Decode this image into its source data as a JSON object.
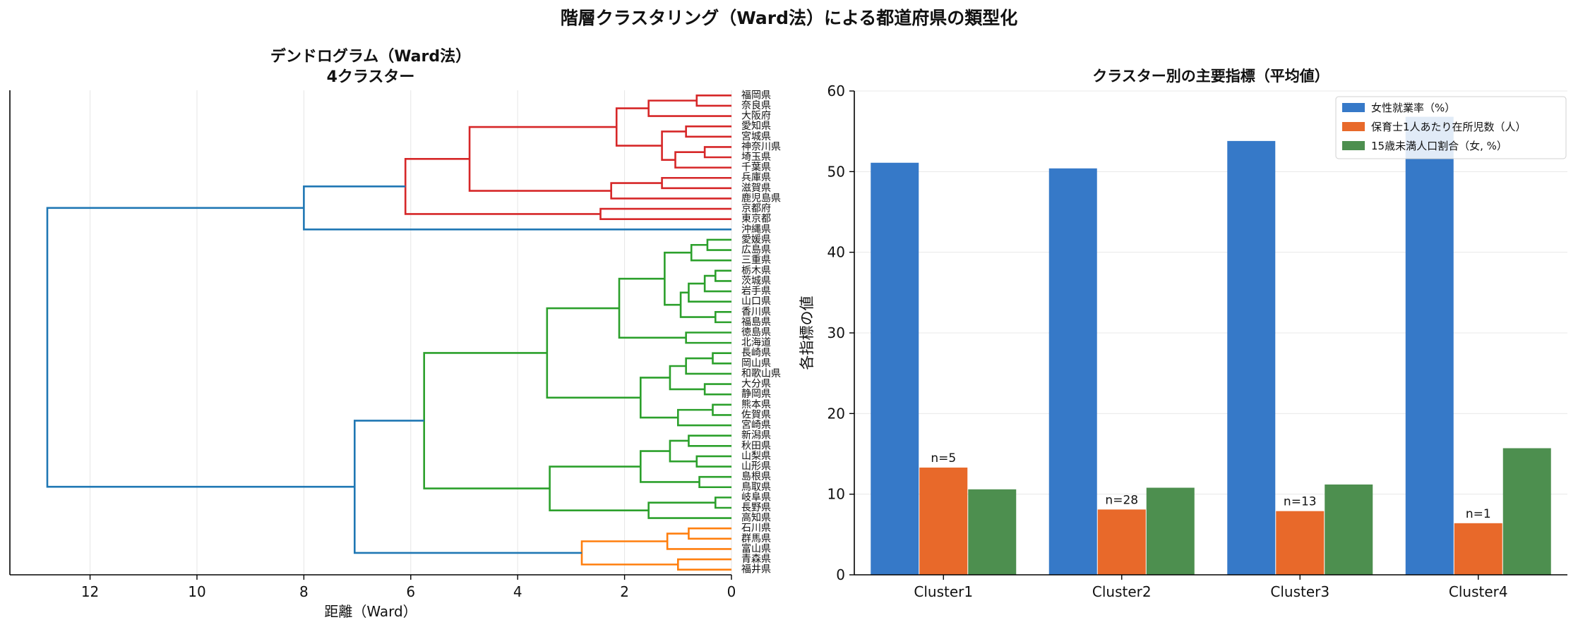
{
  "figure": {
    "title": "階層クラスタリング（Ward法）による都道府県の類型化"
  },
  "colors": {
    "cluster_red": "#d62728",
    "cluster_green": "#2ca02c",
    "cluster_orange": "#ff7f0e",
    "link_blue": "#1f77b4",
    "bar_blue": "#3679c8",
    "bar_orange": "#e8692a",
    "bar_green": "#4d8f4f"
  },
  "chart_data": [
    {
      "type": "dendrogram",
      "title": "デンドログラム（Ward法）",
      "subtitle": "4クラスター",
      "xlabel": "距離（Ward）",
      "xlim": [
        13.5,
        0
      ],
      "xticks": [
        12,
        10,
        8,
        6,
        4,
        2,
        0
      ],
      "grid": "vertical",
      "orientation": "left",
      "leaves": [
        "福岡県",
        "奈良県",
        "大阪府",
        "愛知県",
        "宮城県",
        "神奈川県",
        "埼玉県",
        "千葉県",
        "兵庫県",
        "滋賀県",
        "鹿児島県",
        "京都府",
        "東京都",
        "沖縄県",
        "愛媛県",
        "広島県",
        "三重県",
        "栃木県",
        "茨城県",
        "岩手県",
        "山口県",
        "香川県",
        "福島県",
        "徳島県",
        "北海道",
        "長崎県",
        "岡山県",
        "和歌山県",
        "大分県",
        "静岡県",
        "熊本県",
        "佐賀県",
        "宮崎県",
        "新潟県",
        "秋田県",
        "山梨県",
        "山形県",
        "島根県",
        "鳥取県",
        "岐阜県",
        "長野県",
        "高知県",
        "石川県",
        "群馬県",
        "富山県",
        "青森県",
        "福井県"
      ],
      "links": [
        {
          "a": 0,
          "b": 1,
          "h": 0.65,
          "c": "red"
        },
        {
          "a": "L0",
          "b": 2,
          "h": 1.55,
          "c": "red"
        },
        {
          "a": 3,
          "b": 4,
          "h": 0.85,
          "c": "red"
        },
        {
          "a": 5,
          "b": 6,
          "h": 0.5,
          "c": "red"
        },
        {
          "a": "L3",
          "b": 7,
          "h": 1.05,
          "c": "red"
        },
        {
          "a": "L2",
          "b": "L4",
          "h": 1.3,
          "c": "red"
        },
        {
          "a": "L1",
          "b": "L5",
          "h": 2.15,
          "c": "red"
        },
        {
          "a": 8,
          "b": 9,
          "h": 1.3,
          "c": "red"
        },
        {
          "a": "L7",
          "b": 10,
          "h": 2.25,
          "c": "red"
        },
        {
          "a": "L6",
          "b": "L8",
          "h": 4.9,
          "c": "red"
        },
        {
          "a": 11,
          "b": 12,
          "h": 2.45,
          "c": "red"
        },
        {
          "a": "L9",
          "b": "L10",
          "h": 6.1,
          "c": "red"
        },
        {
          "a": "L11",
          "b": 13,
          "h": 8.0,
          "c": "blue"
        },
        {
          "a": 14,
          "b": 15,
          "h": 0.45,
          "c": "green"
        },
        {
          "a": "L13",
          "b": 16,
          "h": 0.75,
          "c": "green"
        },
        {
          "a": 17,
          "b": 18,
          "h": 0.3,
          "c": "green"
        },
        {
          "a": "L15",
          "b": 19,
          "h": 0.5,
          "c": "green"
        },
        {
          "a": "L16",
          "b": 20,
          "h": 0.8,
          "c": "green"
        },
        {
          "a": 21,
          "b": 22,
          "h": 0.3,
          "c": "green"
        },
        {
          "a": "L17",
          "b": "L18",
          "h": 0.95,
          "c": "green"
        },
        {
          "a": "L14",
          "b": "L19",
          "h": 1.25,
          "c": "green"
        },
        {
          "a": 23,
          "b": 24,
          "h": 0.85,
          "c": "green"
        },
        {
          "a": "L20",
          "b": "L21",
          "h": 2.1,
          "c": "green"
        },
        {
          "a": 25,
          "b": 26,
          "h": 0.35,
          "c": "green"
        },
        {
          "a": "L23",
          "b": 27,
          "h": 0.85,
          "c": "green"
        },
        {
          "a": 28,
          "b": 29,
          "h": 0.5,
          "c": "green"
        },
        {
          "a": "L24",
          "b": "L25",
          "h": 1.15,
          "c": "green"
        },
        {
          "a": 30,
          "b": 31,
          "h": 0.35,
          "c": "green"
        },
        {
          "a": "L27",
          "b": 32,
          "h": 1.0,
          "c": "green"
        },
        {
          "a": "L26",
          "b": "L28",
          "h": 1.7,
          "c": "green"
        },
        {
          "a": "L22",
          "b": "L29",
          "h": 3.45,
          "c": "green"
        },
        {
          "a": 33,
          "b": 34,
          "h": 0.8,
          "c": "green"
        },
        {
          "a": 35,
          "b": 36,
          "h": 0.65,
          "c": "green"
        },
        {
          "a": "L31",
          "b": "L32",
          "h": 1.15,
          "c": "green"
        },
        {
          "a": 37,
          "b": 38,
          "h": 0.6,
          "c": "green"
        },
        {
          "a": "L33",
          "b": "L34",
          "h": 1.7,
          "c": "green"
        },
        {
          "a": 39,
          "b": 40,
          "h": 0.3,
          "c": "green"
        },
        {
          "a": "L36",
          "b": 41,
          "h": 1.55,
          "c": "green"
        },
        {
          "a": "L35",
          "b": "L37",
          "h": 3.4,
          "c": "green"
        },
        {
          "a": "L30",
          "b": "L38",
          "h": 5.75,
          "c": "green"
        },
        {
          "a": 42,
          "b": 43,
          "h": 0.8,
          "c": "orange"
        },
        {
          "a": "L40",
          "b": 44,
          "h": 1.2,
          "c": "orange"
        },
        {
          "a": 45,
          "b": 46,
          "h": 1.0,
          "c": "orange"
        },
        {
          "a": "L41",
          "b": "L42",
          "h": 2.8,
          "c": "orange"
        },
        {
          "a": "L39",
          "b": "L43",
          "h": 7.05,
          "c": "blue"
        },
        {
          "a": "L12",
          "b": "L44",
          "h": 12.8,
          "c": "blue"
        }
      ]
    },
    {
      "type": "bar",
      "title": "クラスター別の主要指標（平均値）",
      "ylabel": "各指標の値",
      "xlabel": "",
      "ylim": [
        0,
        60
      ],
      "yticks": [
        0,
        10,
        20,
        30,
        40,
        50,
        60
      ],
      "grid": "horizontal",
      "legend_position": "top-right",
      "categories": [
        "Cluster1",
        "Cluster2",
        "Cluster3",
        "Cluster4"
      ],
      "series": [
        {
          "name": "女性就業率（%）",
          "values": [
            51.1,
            50.4,
            53.8,
            56.8
          ]
        },
        {
          "name": "保育士1人あたり在所児数（人）",
          "values": [
            13.3,
            8.1,
            7.9,
            6.4
          ]
        },
        {
          "name": "15歳未満人口割合（女, %）",
          "values": [
            10.6,
            10.8,
            11.2,
            15.7
          ]
        }
      ],
      "annotations": [
        "n=5",
        "n=28",
        "n=13",
        "n=1"
      ]
    }
  ]
}
